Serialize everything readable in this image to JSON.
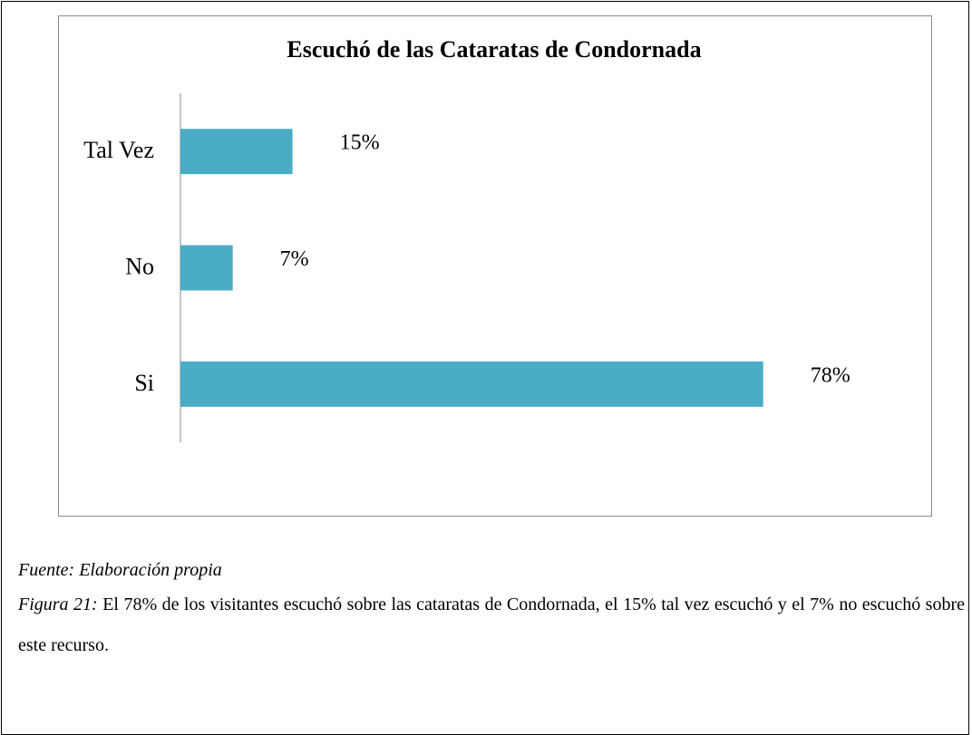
{
  "chart_data": {
    "type": "bar",
    "orientation": "horizontal",
    "title": "Escuchó de las Cataratas de Condornada",
    "categories": [
      "Tal Vez",
      "No",
      "Si"
    ],
    "values": [
      15,
      7,
      78
    ],
    "value_labels": [
      "15%",
      "7%",
      "78%"
    ],
    "color": "#4bacc6",
    "xlim": [
      0,
      100
    ]
  },
  "source": "Fuente: Elaboración propia",
  "caption_label": "Figura 21:",
  "caption": "El 78% de los visitantes escuchó sobre las cataratas de Condornada, el 15% tal vez escuchó y el 7% no escuchó sobre este recurso."
}
